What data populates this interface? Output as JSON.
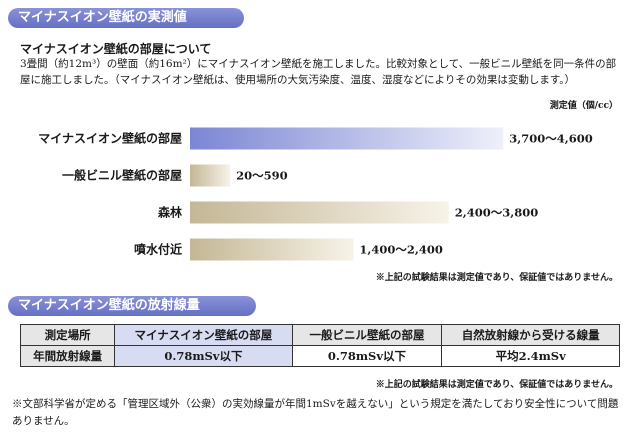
{
  "section1": {
    "title": "マイナスイオン壁紙の実測値",
    "subhead": "マイナスイオン壁紙の部屋について",
    "description": "3畳間（約12m³）の壁面（約16m²）にマイナスイオン壁紙を施工しました。比較対象として、一般ビニル壁紙を同一条件の部屋に施工しました。（マイナスイオン壁紙は、使用場所の大気汚染度、温度、湿度などによりその効果は変動します。）",
    "unit_label": "測定値（個/cc）",
    "note": "※上記の試験結果は測定値であり、保証値ではありません。"
  },
  "chart_data": {
    "type": "bar",
    "orientation": "horizontal",
    "categories": [
      "マイナスイオン壁紙の部屋",
      "一般ビニル壁紙の部屋",
      "森林",
      "噴水付近"
    ],
    "ranges": [
      [
        3700,
        4600
      ],
      [
        20,
        590
      ],
      [
        2400,
        3800
      ],
      [
        1400,
        2400
      ]
    ],
    "values": [
      4600,
      590,
      3800,
      2400
    ],
    "labels": [
      "3,700～4,600",
      "20～590",
      "2,400～3,800",
      "1,400～2,400"
    ],
    "xlim": [
      0,
      4700
    ],
    "grid": false,
    "colors": {
      "highlight_start": "#7c86d4",
      "highlight_end": "#eef0fa",
      "default_start": "#c4b796",
      "default_end": "#f7f3e8"
    }
  },
  "section2": {
    "title": "マイナスイオン壁紙の放射線量",
    "table": {
      "headers": [
        "測定場所",
        "マイナスイオン壁紙の部屋",
        "一般ビニル壁紙の部屋",
        "自然放射線から受ける線量"
      ],
      "row_label": "年間放射線量",
      "row_values": [
        "0.78mSv以下",
        "0.78mSv以下",
        "平均2.4mSv"
      ]
    },
    "note": "※上記の試験結果は測定値であり、保証値ではありません。"
  },
  "footer": {
    "text": "※文部科学省が定める「管理区域外（公衆）の実効線量が年間1mSvを越えない」という規定を満たしており安全性について問題ありません。"
  }
}
